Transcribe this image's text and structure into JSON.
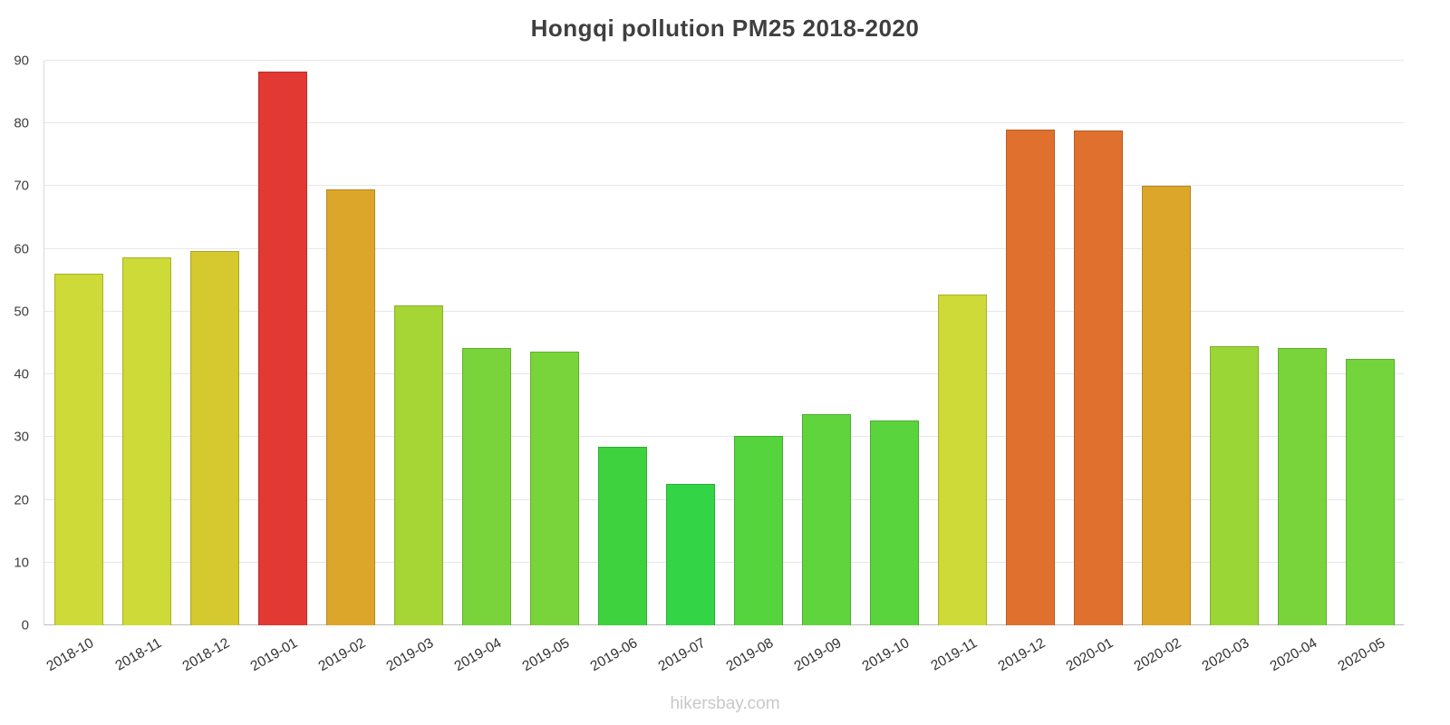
{
  "title": "Hongqi pollution PM25 2018-2020",
  "footer": "hikersbay.com",
  "chart_data": {
    "type": "bar",
    "title": "Hongqi pollution PM25 2018-2020",
    "xlabel": "",
    "ylabel": "",
    "ylim": [
      0,
      90
    ],
    "yticks": [
      0,
      10,
      20,
      30,
      40,
      50,
      60,
      70,
      80,
      90
    ],
    "grid": true,
    "legend": false,
    "categories": [
      "2018-10",
      "2018-11",
      "2018-12",
      "2019-01",
      "2019-02",
      "2019-03",
      "2019-04",
      "2019-05",
      "2019-06",
      "2019-07",
      "2019-08",
      "2019-09",
      "2019-10",
      "2019-11",
      "2019-12",
      "2020-01",
      "2020-02",
      "2020-03",
      "2020-04",
      "2020-05"
    ],
    "values": [
      56,
      58.7,
      59.7,
      88.2,
      69.5,
      51,
      44.2,
      43.7,
      28.5,
      22.5,
      30.2,
      33.6,
      32.7,
      52.7,
      79,
      78.9,
      70,
      44.5,
      44.2,
      42.5
    ],
    "colors": [
      "#cdda37",
      "#cdda37",
      "#d5c92f",
      "#e23933",
      "#dca62a",
      "#a5d636",
      "#79d43c",
      "#79d43c",
      "#3ed33e",
      "#33d546",
      "#55d43d",
      "#60d43d",
      "#5ad43d",
      "#cdda37",
      "#e0702d",
      "#e0702d",
      "#dca62a",
      "#9bd637",
      "#79d43c",
      "#74d43c"
    ]
  }
}
